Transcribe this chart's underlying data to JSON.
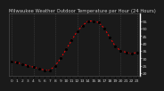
{
  "title": "Milwaukee Weather Outdoor Temperature per Hour (24 Hours)",
  "hours": [
    0,
    1,
    2,
    3,
    4,
    5,
    6,
    7,
    8,
    9,
    10,
    11,
    12,
    13,
    14,
    15,
    16,
    17,
    18,
    19,
    20,
    21,
    22,
    23
  ],
  "temps": [
    28,
    27,
    26,
    25,
    24,
    23,
    22,
    22,
    25,
    30,
    36,
    42,
    48,
    52,
    55,
    55,
    54,
    50,
    44,
    38,
    35,
    34,
    33,
    34
  ],
  "line_color": "#ff0000",
  "marker_color": "#000000",
  "bg_color": "#1a1a1a",
  "plot_bg": "#1a1a1a",
  "grid_color": "#555555",
  "text_color": "#cccccc",
  "ylim": [
    18,
    60
  ],
  "yticks": [
    20,
    25,
    30,
    35,
    40,
    45,
    50,
    55
  ],
  "tick_fontsize": 3.2,
  "title_fontsize": 3.8,
  "vgrid_hours": [
    0,
    4,
    8,
    12,
    16,
    20,
    23
  ],
  "right_border_color": "#ffffff"
}
